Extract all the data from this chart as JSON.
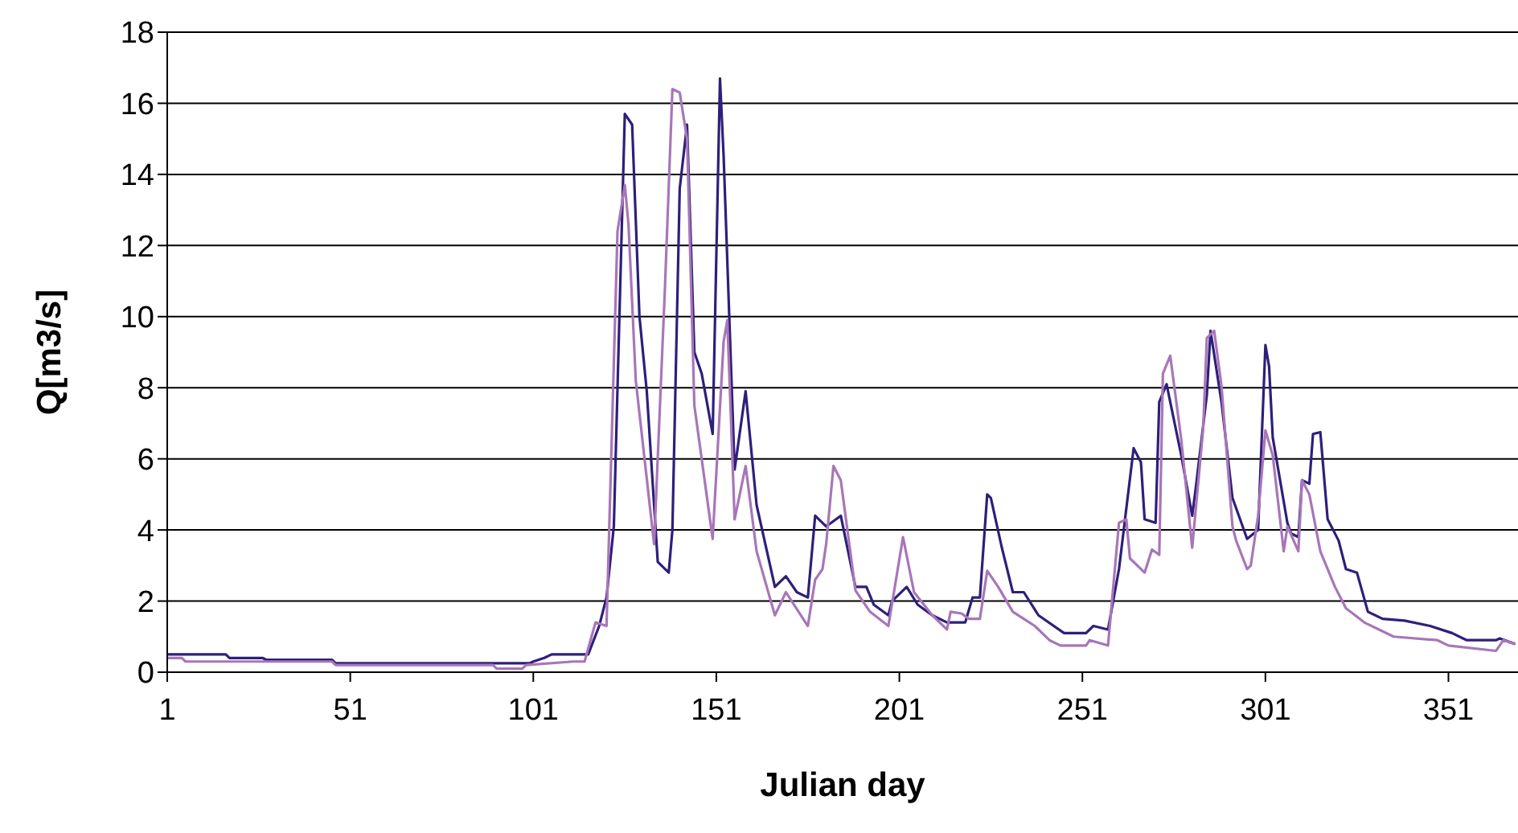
{
  "chart_data": {
    "type": "line",
    "xlabel": "Julian day",
    "ylabel": "Q[m3/s]",
    "xlim": [
      1,
      370
    ],
    "xticks": [
      1,
      51,
      101,
      151,
      201,
      251,
      301,
      351
    ],
    "ylim": [
      0,
      18
    ],
    "yticks": [
      0,
      2,
      4,
      6,
      8,
      10,
      12,
      14,
      16,
      18
    ],
    "grid": "y",
    "marker": "none",
    "line_style": "solid",
    "series": [
      {
        "color": "#2e1f7a",
        "x": [
          1,
          17,
          18,
          27,
          28,
          46,
          47,
          100,
          101,
          104,
          106,
          116,
          119,
          121,
          123,
          126,
          128,
          130,
          132,
          135,
          138,
          139,
          141,
          143,
          145,
          147,
          150,
          152,
          153,
          156,
          159,
          162,
          167,
          170,
          173,
          176,
          178,
          179,
          181,
          185,
          189,
          192,
          194,
          198,
          199,
          203,
          206,
          210,
          214,
          219,
          221,
          223,
          225,
          226,
          229,
          232,
          235,
          239,
          246,
          252,
          254,
          258,
          261,
          265,
          267,
          268,
          271,
          272,
          274,
          278,
          281,
          282,
          285,
          286,
          289,
          292,
          296,
          299,
          301,
          302,
          303,
          307,
          308,
          310,
          311,
          313,
          314,
          316,
          318,
          321,
          323,
          326,
          329,
          333,
          339,
          346,
          352,
          356,
          364,
          365,
          369
        ],
        "values": [
          0.5,
          0.5,
          0.4,
          0.4,
          0.35,
          0.35,
          0.25,
          0.25,
          0.3,
          0.4,
          0.5,
          0.5,
          1.3,
          2.1,
          4.1,
          15.7,
          15.4,
          10.0,
          7.9,
          3.1,
          2.8,
          4.0,
          13.6,
          15.4,
          9.0,
          8.4,
          6.7,
          16.7,
          14.5,
          5.7,
          7.9,
          4.7,
          2.4,
          2.7,
          2.25,
          2.1,
          4.4,
          4.3,
          4.1,
          4.4,
          2.4,
          2.4,
          1.9,
          1.6,
          2.0,
          2.4,
          1.9,
          1.6,
          1.4,
          1.4,
          2.1,
          2.1,
          5.0,
          4.9,
          3.5,
          2.25,
          2.25,
          1.6,
          1.1,
          1.1,
          1.3,
          1.2,
          2.9,
          6.3,
          5.9,
          4.3,
          4.2,
          7.6,
          8.1,
          6.1,
          4.4,
          5.2,
          7.8,
          9.6,
          7.6,
          4.9,
          3.75,
          4.0,
          9.2,
          8.6,
          6.6,
          4.2,
          3.9,
          3.8,
          5.4,
          5.3,
          6.7,
          6.75,
          4.3,
          3.7,
          2.9,
          2.8,
          1.7,
          1.5,
          1.45,
          1.3,
          1.1,
          0.9,
          0.9,
          0.95,
          0.8
        ]
      },
      {
        "color": "#a876b8",
        "x": [
          1,
          5,
          6,
          46,
          47,
          90,
          91,
          98,
          99,
          112,
          115,
          118,
          121,
          124,
          126,
          127,
          129,
          134,
          137,
          139,
          141,
          143,
          145,
          150,
          153,
          154,
          156,
          159,
          162,
          167,
          170,
          176,
          178,
          180,
          181,
          183,
          185,
          189,
          193,
          198,
          202,
          205,
          210,
          214,
          215,
          218,
          220,
          223,
          225,
          228,
          232,
          238,
          242,
          245,
          252,
          253,
          258,
          261,
          263,
          264,
          268,
          270,
          272,
          273,
          275,
          278,
          281,
          284,
          285,
          287,
          289,
          292,
          293,
          296,
          297,
          299,
          301,
          303,
          306,
          307,
          310,
          311,
          313,
          316,
          320,
          323,
          328,
          336,
          348,
          351,
          364,
          366,
          369
        ],
        "values": [
          0.4,
          0.4,
          0.3,
          0.3,
          0.2,
          0.2,
          0.1,
          0.1,
          0.2,
          0.3,
          0.3,
          1.4,
          1.3,
          12.4,
          13.7,
          12.6,
          8.2,
          3.6,
          10.9,
          16.4,
          16.3,
          15.0,
          7.5,
          3.75,
          9.3,
          9.9,
          4.3,
          5.8,
          3.4,
          1.6,
          2.25,
          1.3,
          2.6,
          2.9,
          3.6,
          5.8,
          5.4,
          2.3,
          1.7,
          1.3,
          3.8,
          2.25,
          1.6,
          1.2,
          1.7,
          1.65,
          1.5,
          1.5,
          2.85,
          2.4,
          1.7,
          1.3,
          0.9,
          0.75,
          0.75,
          0.9,
          0.75,
          4.2,
          4.3,
          3.2,
          2.8,
          3.45,
          3.3,
          8.4,
          8.9,
          6.55,
          3.5,
          6.85,
          9.4,
          9.6,
          8.05,
          4.1,
          3.7,
          2.9,
          3.0,
          4.4,
          6.8,
          6.1,
          3.4,
          4.1,
          3.4,
          5.4,
          5.0,
          3.4,
          2.4,
          1.8,
          1.4,
          1.0,
          0.9,
          0.75,
          0.6,
          0.9,
          0.8
        ]
      }
    ]
  }
}
